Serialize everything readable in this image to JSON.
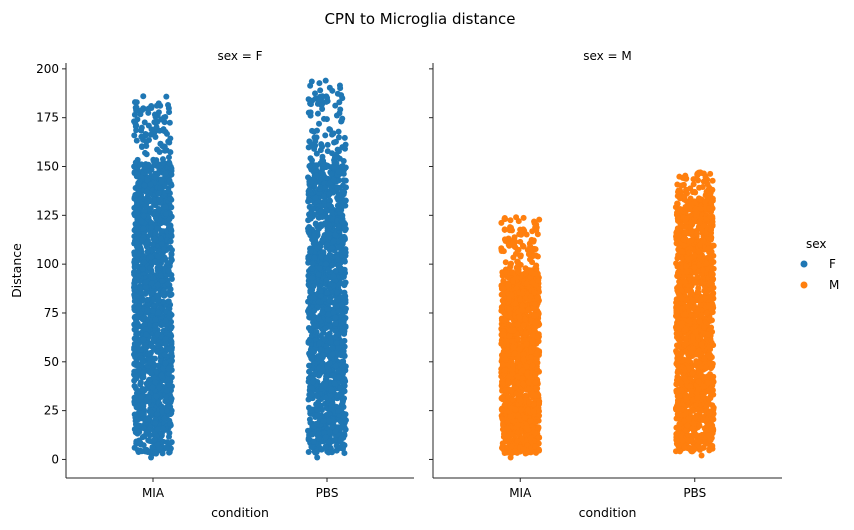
{
  "figure": {
    "suptitle": "CPN to Microglia distance"
  },
  "colors": {
    "F": "#1f77b4",
    "M": "#ff7f0e",
    "axis": "#262626"
  },
  "legend": {
    "title": "sex",
    "placement": "right",
    "items": [
      {
        "label": "F",
        "color": "#1f77b4"
      },
      {
        "label": "M",
        "color": "#ff7f0e"
      }
    ]
  },
  "chart_data": [
    {
      "type": "scatter",
      "subtype": "stripplot",
      "title": "sex = F",
      "xlabel": "condition",
      "ylabel": "Distance",
      "categories": [
        "MIA",
        "PBS"
      ],
      "ylim": [
        -9.5,
        203
      ],
      "yticks": [
        0,
        25,
        50,
        75,
        100,
        125,
        150,
        175,
        200
      ],
      "grid": false,
      "series": [
        {
          "name": "F",
          "category": "MIA",
          "y_min": 1,
          "y_max": 186,
          "dense_until": 150
        },
        {
          "name": "F",
          "category": "PBS",
          "y_min": 1,
          "y_max": 194,
          "dense_until": 150
        }
      ]
    },
    {
      "type": "scatter",
      "subtype": "stripplot",
      "title": "sex = M",
      "xlabel": "condition",
      "ylabel": "",
      "categories": [
        "MIA",
        "PBS"
      ],
      "ylim": [
        -9.5,
        203
      ],
      "yticks": [
        0,
        25,
        50,
        75,
        100,
        125,
        150,
        175,
        200
      ],
      "grid": false,
      "series": [
        {
          "name": "M",
          "category": "MIA",
          "y_min": 1,
          "y_max": 124,
          "dense_until": 95
        },
        {
          "name": "M",
          "category": "PBS",
          "y_min": 2,
          "y_max": 147,
          "dense_until": 128
        }
      ]
    }
  ]
}
